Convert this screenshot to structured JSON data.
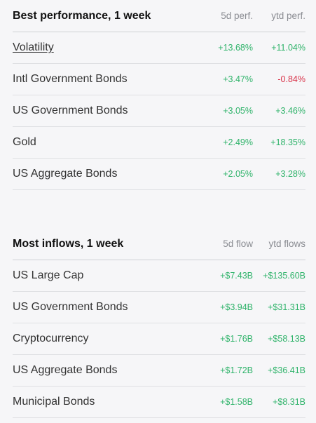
{
  "performance": {
    "title": "Best performance, 1 week",
    "col1": "5d perf.",
    "col2": "ytd perf.",
    "rows": [
      {
        "name": "Volatility",
        "v1": "+13.68%",
        "v2": "+11.04%"
      },
      {
        "name": "Intl Government Bonds",
        "v1": "+3.47%",
        "v2": "-0.84%"
      },
      {
        "name": "US Government Bonds",
        "v1": "+3.05%",
        "v2": "+3.46%"
      },
      {
        "name": "Gold",
        "v1": "+2.49%",
        "v2": "+18.35%"
      },
      {
        "name": "US Aggregate Bonds",
        "v1": "+2.05%",
        "v2": "+3.28%"
      }
    ]
  },
  "flows": {
    "title": "Most inflows, 1 week",
    "col1": "5d flow",
    "col2": "ytd flows",
    "rows": [
      {
        "name": "US Large Cap",
        "v1": "+$7.43B",
        "v2": "+$135.60B"
      },
      {
        "name": "US Government Bonds",
        "v1": "+$3.94B",
        "v2": "+$31.31B"
      },
      {
        "name": "Cryptocurrency",
        "v1": "+$1.76B",
        "v2": "+$58.13B"
      },
      {
        "name": "US Aggregate Bonds",
        "v1": "+$1.72B",
        "v2": "+$36.41B"
      },
      {
        "name": "Municipal Bonds",
        "v1": "+$1.58B",
        "v2": "+$8.31B"
      }
    ]
  },
  "colors": {
    "positive": "#2fb36a",
    "negative": "#d9344a",
    "background": "#f6f6f8"
  }
}
